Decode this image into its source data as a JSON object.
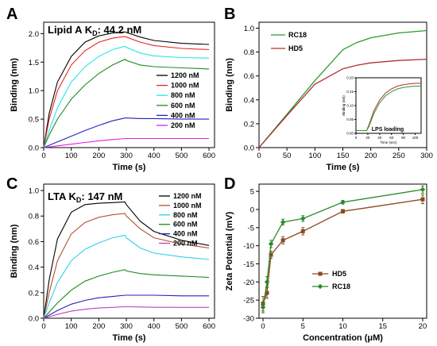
{
  "chart_data": [
    {
      "id": "A",
      "type": "line",
      "annotation": {
        "prefix": "Lipid A",
        "k": "K",
        "sub": "D",
        "value": ": 44.2 nM"
      },
      "xlabel": "Time   (s)",
      "ylabel": "Binding (nm)",
      "xlim": [
        0,
        620
      ],
      "ylim": [
        0,
        2.2
      ],
      "xticks": [
        0,
        100,
        200,
        300,
        400,
        500,
        600
      ],
      "yticks": [
        0.0,
        0.5,
        1.0,
        1.5,
        2.0
      ],
      "ytick_labels": [
        "0.0",
        "0.5",
        "1.0",
        "1.5",
        "2.0"
      ],
      "legend": "right",
      "series": [
        {
          "name": "1200 nM",
          "color": "#000000",
          "x": [
            0,
            20,
            50,
            100,
            150,
            200,
            250,
            295,
            300,
            350,
            400,
            500,
            600
          ],
          "y": [
            0,
            0.6,
            1.15,
            1.6,
            1.85,
            1.96,
            2.01,
            2.03,
            2.02,
            1.94,
            1.88,
            1.83,
            1.81
          ]
        },
        {
          "name": "1000 nM",
          "color": "#e8261f",
          "x": [
            0,
            20,
            50,
            100,
            150,
            200,
            250,
            295,
            300,
            350,
            400,
            500,
            600
          ],
          "y": [
            0,
            0.5,
            1.0,
            1.45,
            1.7,
            1.85,
            1.92,
            1.95,
            1.94,
            1.85,
            1.79,
            1.74,
            1.72
          ]
        },
        {
          "name": "800 nM",
          "color": "#25e6e6",
          "x": [
            0,
            20,
            50,
            100,
            150,
            200,
            250,
            295,
            300,
            350,
            400,
            500,
            600
          ],
          "y": [
            0,
            0.3,
            0.7,
            1.15,
            1.42,
            1.6,
            1.72,
            1.78,
            1.76,
            1.66,
            1.61,
            1.58,
            1.57
          ]
        },
        {
          "name": "600 nM",
          "color": "#1f8a1f",
          "x": [
            0,
            20,
            50,
            100,
            150,
            200,
            250,
            295,
            300,
            350,
            400,
            500,
            600
          ],
          "y": [
            0,
            0.22,
            0.5,
            0.85,
            1.1,
            1.3,
            1.45,
            1.55,
            1.53,
            1.45,
            1.42,
            1.4,
            1.38
          ]
        },
        {
          "name": "400 nM",
          "color": "#2222bb",
          "x": [
            0,
            50,
            100,
            150,
            200,
            250,
            295,
            300,
            350,
            400,
            500,
            600
          ],
          "y": [
            0,
            0.1,
            0.2,
            0.3,
            0.39,
            0.47,
            0.52,
            0.52,
            0.51,
            0.51,
            0.5,
            0.5
          ]
        },
        {
          "name": "200 nM",
          "color": "#e020e0",
          "x": [
            0,
            50,
            100,
            150,
            200,
            250,
            295,
            300,
            350,
            400,
            500,
            600
          ],
          "y": [
            0,
            0.03,
            0.06,
            0.09,
            0.12,
            0.14,
            0.16,
            0.16,
            0.16,
            0.16,
            0.16,
            0.16
          ]
        }
      ]
    },
    {
      "id": "B",
      "type": "line",
      "xlabel": "Time   (s)",
      "ylabel": "Binding (nm)",
      "xlim": [
        0,
        300
      ],
      "ylim": [
        0,
        1.05
      ],
      "xticks": [
        0,
        50,
        100,
        150,
        200,
        250,
        300
      ],
      "yticks": [
        0.0,
        0.2,
        0.4,
        0.6,
        0.8,
        1.0
      ],
      "ytick_labels": [
        "0.0",
        "0.2",
        "0.4",
        "0.6",
        "0.8",
        "1.0"
      ],
      "legend": "top-left",
      "series": [
        {
          "name": "RC18",
          "color": "#2a9a2a",
          "x": [
            0,
            50,
            100,
            150,
            175,
            200,
            250,
            300
          ],
          "y": [
            0,
            0.28,
            0.56,
            0.82,
            0.88,
            0.92,
            0.96,
            0.98
          ]
        },
        {
          "name": "HD5",
          "color": "#b03030",
          "x": [
            0,
            50,
            100,
            150,
            175,
            200,
            250,
            300
          ],
          "y": [
            0,
            0.27,
            0.53,
            0.66,
            0.69,
            0.71,
            0.73,
            0.74
          ]
        }
      ],
      "inset": {
        "annotation": "LPS loading",
        "xlabel": "Time (sec)",
        "ylabel": "Binding (nm)",
        "xlim": [
          0,
          110
        ],
        "ylim": [
          0,
          0.2
        ],
        "xticks": [
          0,
          20,
          40,
          60,
          80,
          100
        ],
        "yticks": [
          0.0,
          0.05,
          0.1,
          0.15,
          0.2
        ],
        "ytick_labels": [
          "0.00",
          "0.05",
          "0.10",
          "0.15",
          "0.20"
        ],
        "series": [
          {
            "name": "HD5",
            "color": "#b03030",
            "x": [
              0,
              18,
              22,
              30,
              40,
              50,
              60,
              70,
              80,
              90,
              100,
              110
            ],
            "y": [
              0.01,
              0.01,
              0.03,
              0.08,
              0.12,
              0.145,
              0.16,
              0.17,
              0.175,
              0.178,
              0.18,
              0.18
            ]
          },
          {
            "name": "RC18",
            "color": "#2a9a2a",
            "x": [
              0,
              18,
              22,
              30,
              40,
              50,
              60,
              70,
              80,
              90,
              100,
              110
            ],
            "y": [
              0.01,
              0.01,
              0.025,
              0.07,
              0.11,
              0.135,
              0.15,
              0.16,
              0.165,
              0.168,
              0.17,
              0.17
            ]
          }
        ]
      }
    },
    {
      "id": "C",
      "type": "line",
      "annotation": {
        "prefix": "LTA",
        "k": "K",
        "sub": "D",
        "value": ": 147 nM"
      },
      "xlabel": "Time   (s)",
      "ylabel": "Binding (nm)",
      "xlim": [
        0,
        620
      ],
      "ylim": [
        0,
        1.05
      ],
      "xticks": [
        0,
        100,
        200,
        300,
        400,
        500,
        600
      ],
      "yticks": [
        0.0,
        0.2,
        0.4,
        0.6,
        0.8,
        1.0
      ],
      "ytick_labels": [
        "0.0",
        "0.2",
        "0.4",
        "0.6",
        "0.8",
        "1.0"
      ],
      "legend": "top-right",
      "series": [
        {
          "name": "1200 nM",
          "color": "#000000",
          "x": [
            0,
            20,
            50,
            100,
            150,
            200,
            250,
            295,
            300,
            350,
            400,
            500,
            600
          ],
          "y": [
            0,
            0.3,
            0.62,
            0.83,
            0.89,
            0.9,
            0.905,
            0.91,
            0.89,
            0.76,
            0.68,
            0.61,
            0.57
          ]
        },
        {
          "name": "1000 nM",
          "color": "#b5502a",
          "x": [
            0,
            20,
            50,
            100,
            150,
            200,
            250,
            295,
            300,
            350,
            400,
            500,
            600
          ],
          "y": [
            0,
            0.2,
            0.45,
            0.66,
            0.75,
            0.79,
            0.81,
            0.82,
            0.8,
            0.7,
            0.63,
            0.58,
            0.55
          ]
        },
        {
          "name": "800 nM",
          "color": "#30d0e8",
          "x": [
            0,
            20,
            50,
            100,
            150,
            200,
            250,
            295,
            300,
            350,
            400,
            500,
            600
          ],
          "y": [
            0,
            0.12,
            0.28,
            0.45,
            0.54,
            0.59,
            0.63,
            0.65,
            0.63,
            0.55,
            0.51,
            0.48,
            0.46
          ]
        },
        {
          "name": "600 nM",
          "color": "#1f8a1f",
          "x": [
            0,
            50,
            100,
            150,
            200,
            250,
            295,
            300,
            350,
            400,
            500,
            600
          ],
          "y": [
            0,
            0.12,
            0.22,
            0.29,
            0.33,
            0.36,
            0.38,
            0.37,
            0.35,
            0.34,
            0.33,
            0.32
          ]
        },
        {
          "name": "400 nM",
          "color": "#2222bb",
          "x": [
            0,
            50,
            100,
            150,
            200,
            250,
            295,
            300,
            350,
            400,
            500,
            600
          ],
          "y": [
            0,
            0.06,
            0.11,
            0.14,
            0.16,
            0.17,
            0.18,
            0.18,
            0.18,
            0.18,
            0.175,
            0.175
          ]
        },
        {
          "name": "200 nM",
          "color": "#c040c0",
          "x": [
            0,
            50,
            100,
            150,
            200,
            250,
            295,
            300,
            350,
            400,
            500,
            600
          ],
          "y": [
            0,
            0.03,
            0.055,
            0.07,
            0.08,
            0.085,
            0.09,
            0.09,
            0.088,
            0.086,
            0.085,
            0.085
          ]
        }
      ]
    },
    {
      "id": "D",
      "type": "line",
      "xlabel": "Concentration (μM)",
      "ylabel": "Zeta Potential (mV)",
      "xlim": [
        -0.5,
        20.5
      ],
      "ylim": [
        -30,
        7
      ],
      "xticks": [
        0,
        5,
        10,
        15,
        20
      ],
      "yticks": [
        -30,
        -25,
        -20,
        -15,
        -10,
        -5,
        0,
        5
      ],
      "ytick_labels": [
        "-30",
        "-25",
        "-20",
        "-15",
        "-10",
        "-5",
        "0",
        "5"
      ],
      "legend": "center",
      "series": [
        {
          "name": "HD5",
          "color": "#8a4a20",
          "marker": "square",
          "x": [
            0,
            0.5,
            1,
            2.5,
            5,
            10,
            20
          ],
          "y": [
            -26,
            -23,
            -12.5,
            -8.5,
            -6,
            -0.5,
            2.8
          ],
          "err": [
            2,
            1.5,
            1,
            1,
            1,
            0.5,
            1.2
          ]
        },
        {
          "name": "RC18",
          "color": "#2a8a2a",
          "marker": "diamond",
          "x": [
            0,
            0.5,
            1,
            2.5,
            5,
            10,
            20
          ],
          "y": [
            -27,
            -20,
            -9.5,
            -3.5,
            -2.5,
            2,
            5.5
          ],
          "err": [
            1.5,
            1.5,
            1,
            0.8,
            0.8,
            0.5,
            1
          ]
        }
      ]
    }
  ]
}
